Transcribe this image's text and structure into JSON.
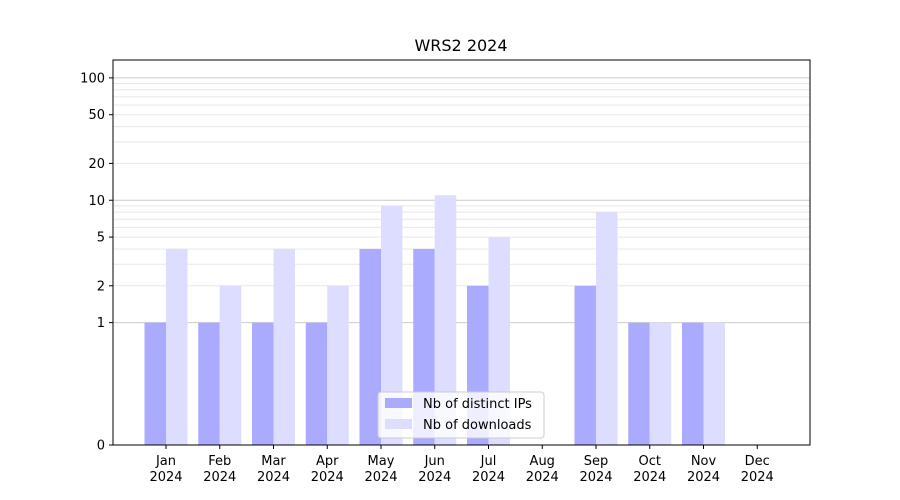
{
  "chart_data": {
    "type": "bar",
    "title": "WRS2 2024",
    "xlabel": "",
    "ylabel": "",
    "y_scale": "symlog",
    "ylim": [
      0,
      140
    ],
    "y_ticks": [
      0,
      1,
      2,
      5,
      10,
      20,
      50,
      100
    ],
    "y_tick_labels": [
      "0",
      "1",
      "2",
      "5",
      "10",
      "20",
      "50",
      "100"
    ],
    "categories": [
      "Jan\n2024",
      "Feb\n2024",
      "Mar\n2024",
      "Apr\n2024",
      "May\n2024",
      "Jun\n2024",
      "Jul\n2024",
      "Aug\n2024",
      "Sep\n2024",
      "Oct\n2024",
      "Nov\n2024",
      "Dec\n2024"
    ],
    "category_lines": [
      [
        "Jan",
        "2024"
      ],
      [
        "Feb",
        "2024"
      ],
      [
        "Mar",
        "2024"
      ],
      [
        "Apr",
        "2024"
      ],
      [
        "May",
        "2024"
      ],
      [
        "Jun",
        "2024"
      ],
      [
        "Jul",
        "2024"
      ],
      [
        "Aug",
        "2024"
      ],
      [
        "Sep",
        "2024"
      ],
      [
        "Oct",
        "2024"
      ],
      [
        "Nov",
        "2024"
      ],
      [
        "Dec",
        "2024"
      ]
    ],
    "series": [
      {
        "name": "Nb of distinct IPs",
        "color": "#aaaaff",
        "values": [
          1,
          1,
          1,
          1,
          4,
          4,
          2,
          0,
          2,
          1,
          1,
          0
        ]
      },
      {
        "name": "Nb of downloads",
        "color": "#ddddff",
        "values": [
          4,
          2,
          4,
          2,
          9,
          11,
          5,
          0,
          8,
          1,
          1,
          0
        ]
      }
    ],
    "grid": true,
    "legend_position": "bottom-center"
  }
}
